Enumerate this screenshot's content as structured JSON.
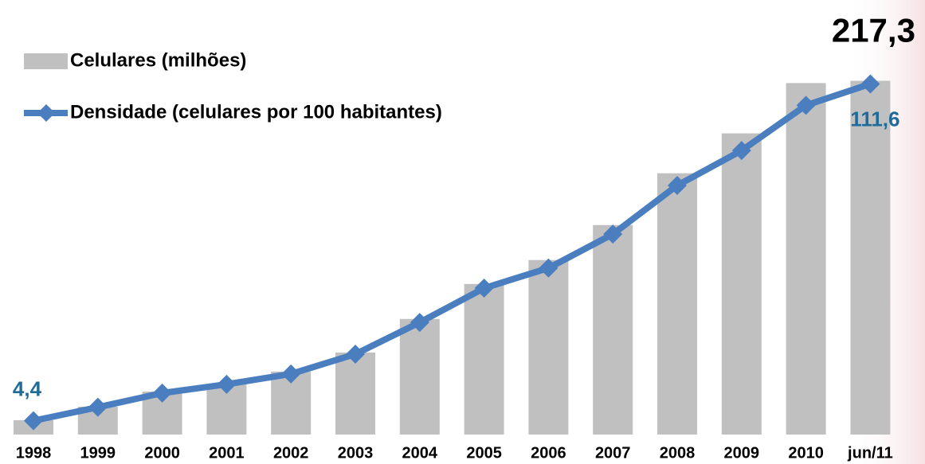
{
  "chart_data": {
    "type": "bar_line",
    "categories": [
      "1998",
      "1999",
      "2000",
      "2001",
      "2002",
      "2003",
      "2004",
      "2005",
      "2006",
      "2007",
      "2008",
      "2009",
      "2010",
      "jun/11"
    ],
    "series": [
      {
        "name": "Celulares (milhões)",
        "type": "bar",
        "color": "#c0c0c0",
        "values": [
          8.8,
          17.1,
          26.4,
          30.8,
          38.7,
          50.4,
          71.0,
          92.5,
          107.2,
          128.7,
          160.5,
          185.0,
          215.9,
          217.3
        ],
        "value_labels": [
          null,
          null,
          null,
          null,
          null,
          null,
          null,
          null,
          null,
          null,
          null,
          null,
          null,
          "217,3"
        ]
      },
      {
        "name": "Densidade (celulares por 100 habitantes)",
        "type": "line",
        "axis": "y2",
        "color": "#4a7ebf",
        "values": [
          4.4,
          8.7,
          13.2,
          16.0,
          19.3,
          25.6,
          35.7,
          46.6,
          53.0,
          63.8,
          79.3,
          90.4,
          104.8,
          111.6
        ],
        "value_labels": [
          "4,4",
          null,
          null,
          null,
          null,
          null,
          null,
          null,
          null,
          null,
          null,
          null,
          null,
          "111,6"
        ]
      }
    ],
    "ylim": [
      0,
      220
    ],
    "y2lim": [
      0,
      114
    ],
    "legend": "top-left"
  }
}
